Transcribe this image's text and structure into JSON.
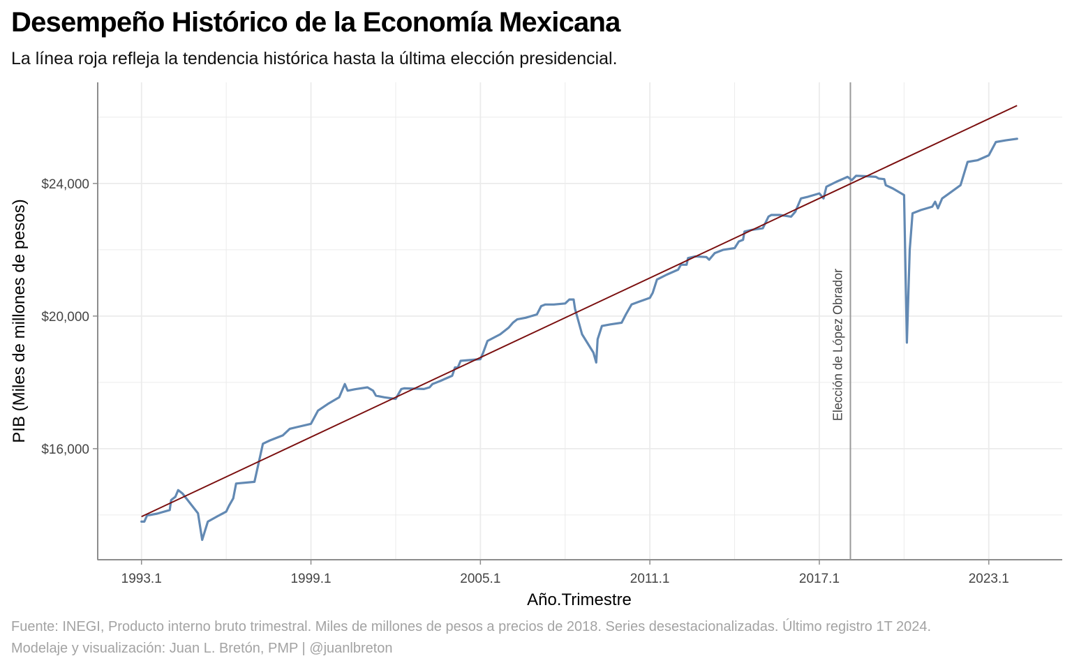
{
  "chart_data": {
    "type": "line",
    "title": "Desempeño Histórico de la Economía Mexicana",
    "subtitle": "La línea roja refleja la tendencia histórica hasta la última elección presidencial.",
    "xlabel": "Año.Trimestre",
    "ylabel": "PIB (Miles de millones de pesos)",
    "x_ticks": [
      {
        "value": 1993.0,
        "label": "1993.1"
      },
      {
        "value": 1999.0,
        "label": "1999.1"
      },
      {
        "value": 2005.0,
        "label": "2005.1"
      },
      {
        "value": 2011.0,
        "label": "2011.1"
      },
      {
        "value": 2017.0,
        "label": "2017.1"
      },
      {
        "value": 2023.0,
        "label": "2023.1"
      }
    ],
    "y_ticks": [
      {
        "value": 16000,
        "label": "$16,000"
      },
      {
        "value": 20000,
        "label": "$20,000"
      },
      {
        "value": 24000,
        "label": "$24,000"
      }
    ],
    "xlim": [
      1991.45,
      2025.6
    ],
    "ylim": [
      12650,
      27050
    ],
    "grid": true,
    "colors": {
      "series": "#6289b3",
      "trend": "#7a0e0e",
      "vline": "#9a9a9a",
      "grid": "#ebebeb",
      "axis": "#8c8c8c"
    },
    "series": [
      {
        "points": [
          [
            1993.0,
            13800
          ],
          [
            1993.1,
            13800
          ],
          [
            1993.2,
            13990
          ],
          [
            1993.3,
            14000
          ],
          [
            1993.55,
            14040
          ],
          [
            1994.0,
            14150
          ],
          [
            1994.05,
            14450
          ],
          [
            1994.2,
            14550
          ],
          [
            1994.3,
            14750
          ],
          [
            1994.45,
            14650
          ],
          [
            1995.0,
            14050
          ],
          [
            1995.15,
            13250
          ],
          [
            1995.35,
            13800
          ],
          [
            1995.75,
            13990
          ],
          [
            1996.0,
            14100
          ],
          [
            1996.1,
            14280
          ],
          [
            1996.25,
            14500
          ],
          [
            1996.35,
            14950
          ],
          [
            1997.0,
            15000
          ],
          [
            1997.3,
            16150
          ],
          [
            1997.55,
            16250
          ],
          [
            1998.0,
            16400
          ],
          [
            1998.25,
            16600
          ],
          [
            1998.5,
            16650
          ],
          [
            1999.0,
            16750
          ],
          [
            1999.25,
            17150
          ],
          [
            1999.6,
            17350
          ],
          [
            2000.0,
            17550
          ],
          [
            2000.2,
            17950
          ],
          [
            2000.3,
            17750
          ],
          [
            2000.6,
            17800
          ],
          [
            2001.0,
            17850
          ],
          [
            2001.2,
            17750
          ],
          [
            2001.3,
            17600
          ],
          [
            2001.6,
            17550
          ],
          [
            2002.0,
            17500
          ],
          [
            2002.2,
            17800
          ],
          [
            2002.3,
            17820
          ],
          [
            2003.0,
            17800
          ],
          [
            2003.2,
            17850
          ],
          [
            2003.3,
            17950
          ],
          [
            2003.6,
            18050
          ],
          [
            2004.0,
            18200
          ],
          [
            2004.1,
            18450
          ],
          [
            2004.2,
            18450
          ],
          [
            2004.3,
            18650
          ],
          [
            2005.0,
            18700
          ],
          [
            2005.1,
            18900
          ],
          [
            2005.25,
            19250
          ],
          [
            2005.7,
            19450
          ],
          [
            2006.0,
            19650
          ],
          [
            2006.15,
            19800
          ],
          [
            2006.3,
            19900
          ],
          [
            2006.6,
            19950
          ],
          [
            2007.0,
            20050
          ],
          [
            2007.15,
            20300
          ],
          [
            2007.3,
            20350
          ],
          [
            2007.6,
            20350
          ],
          [
            2008.0,
            20380
          ],
          [
            2008.15,
            20500
          ],
          [
            2008.3,
            20500
          ],
          [
            2008.35,
            20220
          ],
          [
            2008.6,
            19450
          ],
          [
            2009.0,
            18900
          ],
          [
            2009.1,
            18600
          ],
          [
            2009.15,
            19300
          ],
          [
            2009.3,
            19700
          ],
          [
            2009.6,
            19750
          ],
          [
            2010.0,
            19800
          ],
          [
            2010.15,
            20050
          ],
          [
            2010.35,
            20350
          ],
          [
            2010.6,
            20430
          ],
          [
            2011.0,
            20550
          ],
          [
            2011.1,
            20700
          ],
          [
            2011.25,
            21100
          ],
          [
            2011.6,
            21250
          ],
          [
            2012.0,
            21400
          ],
          [
            2012.1,
            21550
          ],
          [
            2012.3,
            21550
          ],
          [
            2012.35,
            21750
          ],
          [
            2012.6,
            21800
          ],
          [
            2013.0,
            21780
          ],
          [
            2013.1,
            21700
          ],
          [
            2013.3,
            21900
          ],
          [
            2013.6,
            22000
          ],
          [
            2014.0,
            22050
          ],
          [
            2014.15,
            22250
          ],
          [
            2014.3,
            22300
          ],
          [
            2014.35,
            22550
          ],
          [
            2014.6,
            22600
          ],
          [
            2015.0,
            22650
          ],
          [
            2015.2,
            23000
          ],
          [
            2015.3,
            23050
          ],
          [
            2015.6,
            23050
          ],
          [
            2016.0,
            23000
          ],
          [
            2016.15,
            23150
          ],
          [
            2016.35,
            23550
          ],
          [
            2016.6,
            23600
          ],
          [
            2017.0,
            23700
          ],
          [
            2017.15,
            23550
          ],
          [
            2017.25,
            23900
          ],
          [
            2017.6,
            24050
          ],
          [
            2018.0,
            24200
          ],
          [
            2018.15,
            24100
          ],
          [
            2018.3,
            24230
          ],
          [
            2018.6,
            24220
          ],
          [
            2019.0,
            24200
          ],
          [
            2019.1,
            24150
          ],
          [
            2019.3,
            24130
          ],
          [
            2019.35,
            23950
          ],
          [
            2019.6,
            23850
          ],
          [
            2020.0,
            23650
          ],
          [
            2020.1,
            19200
          ],
          [
            2020.2,
            22000
          ],
          [
            2020.3,
            23100
          ],
          [
            2020.6,
            23200
          ],
          [
            2021.0,
            23300
          ],
          [
            2021.1,
            23450
          ],
          [
            2021.2,
            23250
          ],
          [
            2021.35,
            23550
          ],
          [
            2021.6,
            23700
          ],
          [
            2022.0,
            23950
          ],
          [
            2022.25,
            24650
          ],
          [
            2022.6,
            24700
          ],
          [
            2023.0,
            24850
          ],
          [
            2023.25,
            25250
          ],
          [
            2023.6,
            25300
          ],
          [
            2024.0,
            25350
          ]
        ]
      }
    ],
    "trend_line": {
      "start": [
        1993.0,
        13950
      ],
      "end": [
        2024.0,
        26350
      ]
    },
    "vline": {
      "x": 2018.1,
      "label": "Elección de López Obrador"
    }
  },
  "caption_source": "Fuente: INEGI, Producto interno bruto trimestral. Miles de millones de pesos a precios de 2018. Series desestacionalizadas. Último registro 1T 2024.",
  "caption_author": "Modelaje y visualización: Juan L. Bretón, PMP | @juanlbreton"
}
